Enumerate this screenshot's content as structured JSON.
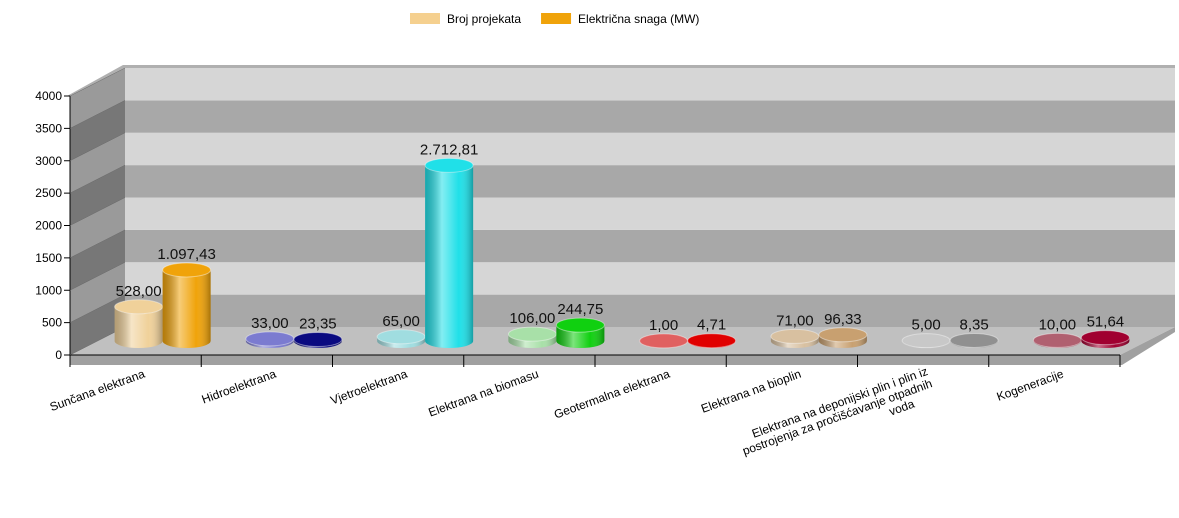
{
  "chart_data": {
    "type": "bar3d",
    "categories": [
      "Sunčana elektrana",
      "Hidroelektrana",
      "Vjetroelektrana",
      "Elektrana na biomasu",
      "Geotermalna elektrana",
      "Elektrana na bioplin",
      "Elektrana na deponijski plin i plin iz postrojenja za pročišćavanje otpadnih voda",
      "Kogeneracije"
    ],
    "series": [
      {
        "name": "Broj projekata",
        "color": "#f5d08f",
        "colors": [
          "#f0d19a",
          "#7b7bd0",
          "#a0dde0",
          "#a8e0a8",
          "#e06060",
          "#d8c0a0",
          "#c8c8c8",
          "#b06070"
        ],
        "values": [
          528,
          33,
          65,
          106,
          1,
          71,
          5,
          10
        ],
        "value_labels": [
          "528,00",
          "33,00",
          "65,00",
          "106,00",
          "1,00",
          "71,00",
          "5,00",
          "10,00"
        ]
      },
      {
        "name": "Električna snaga (MW)",
        "color": "#f0a30a",
        "colors": [
          "#f0a30a",
          "#0a0a80",
          "#20e0e8",
          "#10d010",
          "#e00000",
          "#c8a070",
          "#909090",
          "#a00030"
        ],
        "values": [
          1097.43,
          23.35,
          2712.81,
          244.75,
          4.71,
          96.33,
          8.35,
          51.64
        ],
        "value_labels": [
          "1.097,43",
          "23,35",
          "2.712,81",
          "244,75",
          "4,71",
          "96,33",
          "8,35",
          "51,64"
        ]
      }
    ],
    "ylim": [
      0,
      4000
    ],
    "yticks": [
      0,
      500,
      1000,
      1500,
      2000,
      2500,
      3000,
      3500,
      4000
    ],
    "grid": true,
    "legend": "top"
  }
}
